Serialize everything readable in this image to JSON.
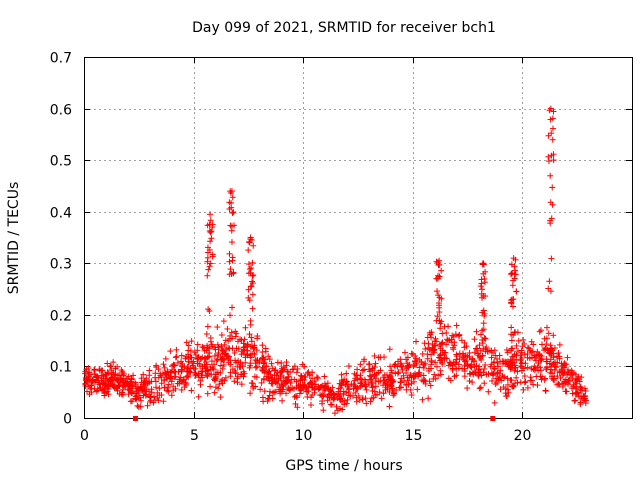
{
  "chart_data": {
    "type": "scatter",
    "title": "Day 099 of 2021, SRMTID for receiver bch1",
    "xlabel": "GPS time / hours",
    "ylabel": "SRMTID / TECUs",
    "xlim": [
      0,
      25
    ],
    "ylim": [
      0,
      0.7
    ],
    "x_ticks": [
      "0",
      "5",
      "10",
      "15",
      "20"
    ],
    "y_ticks": [
      "0",
      "0.1",
      "0.2",
      "0.3",
      "0.4",
      "0.5",
      "0.6",
      "0.7"
    ],
    "grid": true,
    "marker": "+",
    "series_color": "#ff0000",
    "gap_markers_x": [
      2.35,
      18.65
    ],
    "profile": {
      "x": [
        0,
        0.5,
        1.0,
        1.5,
        2.0,
        2.5,
        3.0,
        3.5,
        4.0,
        4.5,
        5.0,
        5.5,
        6.0,
        6.5,
        7.0,
        7.5,
        8.0,
        8.5,
        9.0,
        9.5,
        10.0,
        10.5,
        11.0,
        11.5,
        12.0,
        12.5,
        13.0,
        13.5,
        14.0,
        14.5,
        15.0,
        15.5,
        16.0,
        16.5,
        17.0,
        17.5,
        18.0,
        18.5,
        19.0,
        19.5,
        20.0,
        20.5,
        21.0,
        21.5,
        22.0,
        22.5,
        22.9
      ],
      "center": [
        0.075,
        0.075,
        0.07,
        0.075,
        0.065,
        0.05,
        0.06,
        0.075,
        0.08,
        0.095,
        0.1,
        0.105,
        0.11,
        0.12,
        0.12,
        0.12,
        0.1,
        0.08,
        0.075,
        0.07,
        0.065,
        0.06,
        0.055,
        0.03,
        0.065,
        0.07,
        0.075,
        0.07,
        0.08,
        0.085,
        0.09,
        0.1,
        0.12,
        0.12,
        0.11,
        0.1,
        0.11,
        0.1,
        0.08,
        0.1,
        0.105,
        0.11,
        0.12,
        0.11,
        0.08,
        0.06,
        0.04
      ],
      "spread": [
        0.02,
        0.02,
        0.02,
        0.02,
        0.02,
        0.02,
        0.03,
        0.03,
        0.03,
        0.035,
        0.04,
        0.04,
        0.045,
        0.045,
        0.045,
        0.045,
        0.04,
        0.035,
        0.03,
        0.03,
        0.03,
        0.025,
        0.025,
        0.02,
        0.03,
        0.03,
        0.03,
        0.03,
        0.035,
        0.035,
        0.035,
        0.04,
        0.04,
        0.04,
        0.04,
        0.035,
        0.04,
        0.04,
        0.035,
        0.04,
        0.04,
        0.04,
        0.04,
        0.04,
        0.03,
        0.025,
        0.02
      ]
    },
    "spikes": [
      {
        "x": 5.75,
        "peak": 0.395
      },
      {
        "x": 6.75,
        "peak": 0.44
      },
      {
        "x": 7.6,
        "peak": 0.35
      },
      {
        "x": 16.2,
        "peak": 0.305
      },
      {
        "x": 18.2,
        "peak": 0.3
      },
      {
        "x": 19.6,
        "peak": 0.31
      },
      {
        "x": 21.3,
        "peak": 0.6
      }
    ],
    "point_count": 1600
  }
}
